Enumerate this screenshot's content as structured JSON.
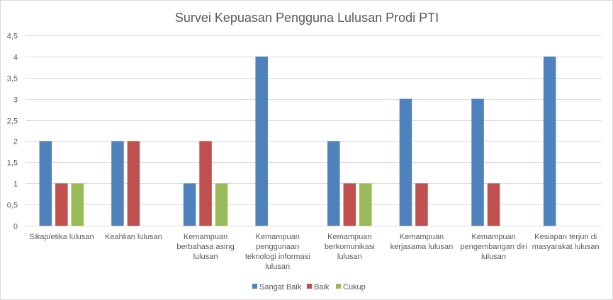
{
  "chart_data": {
    "type": "bar",
    "title": "Survei Kepuasan Pengguna Lulusan Prodi PTI",
    "categories": [
      "Sikap/etika lulusan",
      "Keahlian lulusan",
      "Kemampuan berbahasa asing lulusan",
      "Kemampuan penggunaan teknologi informasi lulusan",
      "Kemampuan berkomunikasi lulusan",
      "Kemampuan kerjasama lulusan",
      "Kemampuan pengembangan diri lulusan",
      "Kesiapan terjun di masyarakat lulusan"
    ],
    "category_lines": [
      [
        "Sikap/etika lulusan"
      ],
      [
        "Keahlian lulusan"
      ],
      [
        "Kemampuan",
        "berbahasa asing",
        "lulusan"
      ],
      [
        "Kemampuan",
        "penggunaan",
        "teknologi informasi",
        "lulusan"
      ],
      [
        "Kemampuan",
        "berkomunikasi",
        "lulusan"
      ],
      [
        "Kemampuan",
        "kerjasama lulusan"
      ],
      [
        "Kemampuan",
        "pengembangan diri",
        "lulusan"
      ],
      [
        "Kesiapan terjun di",
        "masyarakat lulusan"
      ]
    ],
    "series": [
      {
        "name": "Sangat Baik",
        "color": "#4f81bd",
        "values": [
          2,
          2,
          1,
          4,
          2,
          3,
          3,
          4
        ]
      },
      {
        "name": "Baik",
        "color": "#c0504d",
        "values": [
          1,
          2,
          2,
          0,
          1,
          1,
          1,
          0
        ]
      },
      {
        "name": "Cukup",
        "color": "#9bbb59",
        "values": [
          1,
          0,
          1,
          0,
          1,
          0,
          0,
          0
        ]
      }
    ],
    "ylim": [
      0,
      4.5
    ],
    "yticks": [
      "0",
      "0,5",
      "1",
      "1,5",
      "2",
      "2,5",
      "3",
      "3,5",
      "4",
      "4,5"
    ],
    "ytick_values": [
      0,
      0.5,
      1,
      1.5,
      2,
      2.5,
      3,
      3.5,
      4,
      4.5
    ],
    "grid": true,
    "legend_position": "bottom",
    "xlabel": "",
    "ylabel": ""
  }
}
